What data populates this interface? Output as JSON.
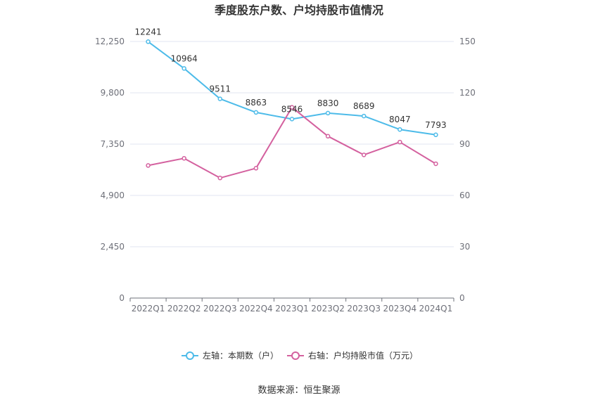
{
  "chart_data": {
    "type": "line",
    "title": "季度股东户数、户均持股市值情况",
    "categories": [
      "2022Q1",
      "2022Q2",
      "2022Q3",
      "2022Q4",
      "2023Q1",
      "2023Q2",
      "2023Q3",
      "2023Q4",
      "2024Q1"
    ],
    "left_axis": {
      "ticks": [
        "0",
        "2,450",
        "4,900",
        "7,350",
        "9,800",
        "12,250"
      ],
      "ylim": [
        0,
        12250
      ]
    },
    "right_axis": {
      "ticks": [
        "0",
        "30",
        "60",
        "90",
        "120",
        "150"
      ],
      "ylim": [
        0,
        150
      ]
    },
    "series": [
      {
        "name": "左轴：本期数（户）",
        "axis": "left",
        "color": "#4dbbe9",
        "values": [
          12241,
          10964,
          9511,
          8863,
          8546,
          8830,
          8689,
          8047,
          7793
        ],
        "labels": [
          "12241",
          "10964",
          "9511",
          "8863",
          "8546",
          "8830",
          "8689",
          "8047",
          "7793"
        ]
      },
      {
        "name": "右轴：户均持股市值（万元）",
        "axis": "right",
        "color": "#d4619f",
        "values": [
          77.5,
          81.7,
          70.2,
          75.9,
          111.5,
          94.6,
          83.7,
          91.2,
          78.5
        ]
      }
    ],
    "grid": true,
    "legend": "bottom-center"
  },
  "footer": {
    "source": "数据来源：恒生聚源"
  }
}
